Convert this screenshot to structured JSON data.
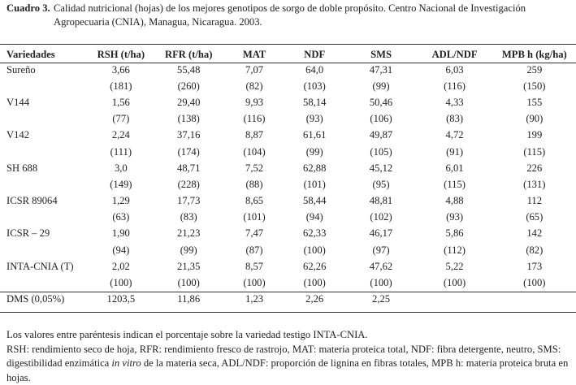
{
  "caption": {
    "label": "Cuadro 3.",
    "text": "Calidad nutricional (hojas) de los mejores genotipos de sorgo de doble propósito. Centro Nacional de Investigación Agropecuaria (CNIA), Managua, Nicaragua. 2003."
  },
  "columns": [
    "Variedades",
    "RSH (t/ha)",
    "RFR (t/ha)",
    "MAT",
    "NDF",
    "SMS",
    "ADL/NDF",
    "MPB h (kg/ha)"
  ],
  "rows": [
    {
      "name": "Sureño",
      "values": [
        "3,66",
        "55,48",
        "7,07",
        "64,0",
        "47,31",
        "6,03",
        "259"
      ],
      "pct": [
        "(181)",
        "(260)",
        "(82)",
        "(103)",
        "(99)",
        "(116)",
        "(150)"
      ]
    },
    {
      "name": "V144",
      "values": [
        "1,56",
        "29,40",
        "9,93",
        "58,14",
        "50,46",
        "4,33",
        "155"
      ],
      "pct": [
        "(77)",
        "(138)",
        "(116)",
        "(93)",
        "(106)",
        "(83)",
        "(90)"
      ]
    },
    {
      "name": "V142",
      "values": [
        "2,24",
        "37,16",
        "8,87",
        "61,61",
        "49,87",
        "4,72",
        "199"
      ],
      "pct": [
        "(111)",
        "(174)",
        "(104)",
        "(99)",
        "(105)",
        "(91)",
        "(115)"
      ]
    },
    {
      "name": "SH 688",
      "values": [
        "3,0",
        "48,71",
        "7,52",
        "62,88",
        "45,12",
        "6,01",
        "226"
      ],
      "pct": [
        "(149)",
        "(228)",
        "(88)",
        "(101)",
        "(95)",
        "(115)",
        "(131)"
      ]
    },
    {
      "name": "ICSR 89064",
      "values": [
        "1,29",
        "17,73",
        "8,65",
        "58,44",
        "48,81",
        "4,88",
        "112"
      ],
      "pct": [
        "(63)",
        "(83)",
        "(101)",
        "(94)",
        "(102)",
        "(93)",
        "(65)"
      ]
    },
    {
      "name": "ICSR – 29",
      "values": [
        "1,90",
        "21,23",
        "7,47",
        "62,33",
        "46,17",
        "5,86",
        "142"
      ],
      "pct": [
        "(94)",
        "(99)",
        "(87)",
        "(100)",
        "(97)",
        "(112)",
        "(82)"
      ]
    },
    {
      "name": "INTA-CNIA (T)",
      "values": [
        "2,02",
        "21,35",
        "8,57",
        "62,26",
        "47,62",
        "5,22",
        "173"
      ],
      "pct": [
        "(100)",
        "(100)",
        "(100)",
        "(100)",
        "(100)",
        "(100)",
        "(100)"
      ]
    }
  ],
  "dms": {
    "label": "DMS (0,05%)",
    "values": [
      "1203,5",
      "11,86",
      "1,23",
      "2,26",
      "2,25",
      "",
      ""
    ]
  },
  "footnotes": {
    "line1": "Los valores entre paréntesis indican el porcentaje sobre la variedad testigo INTA-CNIA.",
    "line2a": "RSH: rendimiento seco de hoja, RFR: rendimiento fresco de rastrojo, MAT: materia proteica total, NDF: fibra detergente, neutro, SMS: digestibilidad enzimática ",
    "line2_italic": "in vitro",
    "line2b": " de la materia seca, ADL/NDF: proporción de lignina en fibras totales, MPB h: materia proteica bruta en hojas."
  }
}
